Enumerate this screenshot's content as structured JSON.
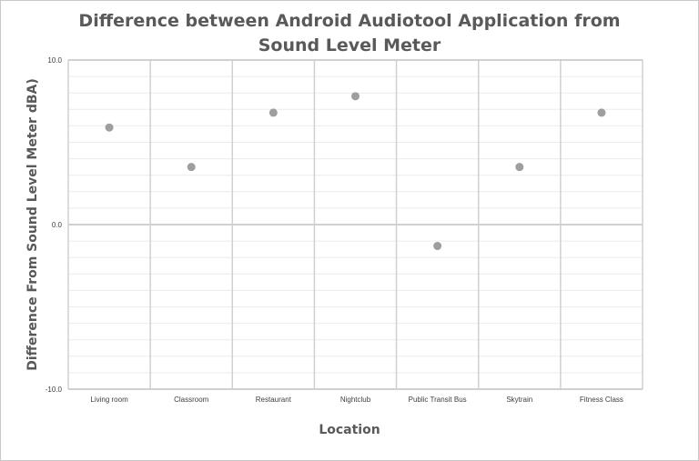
{
  "chart_data": {
    "type": "scatter",
    "title_lines": [
      "Difference between Android Audiotool Application from",
      "Sound Level Meter"
    ],
    "xlabel": "Location",
    "ylabel": "Difference From Sound Level Meter dBA)",
    "categories": [
      "Living room",
      "Classroom",
      "Restaurant",
      "Nightclub",
      "Public Transit Bus",
      "Skytrain",
      "Fitness Class"
    ],
    "values": [
      5.9,
      3.5,
      6.8,
      7.8,
      -1.3,
      3.5,
      6.8
    ],
    "ylim": [
      -10,
      10
    ],
    "yticks": [
      10,
      0,
      -10
    ],
    "ytick_labels": [
      "10.0",
      "0.0",
      "-10.0"
    ],
    "minor_gridline_step": 1,
    "grid": true,
    "legend": "none",
    "colors": {
      "marker": "#9e9e9e",
      "major_grid": "#d0d0d0",
      "minor_grid": "#ebebeb"
    }
  }
}
